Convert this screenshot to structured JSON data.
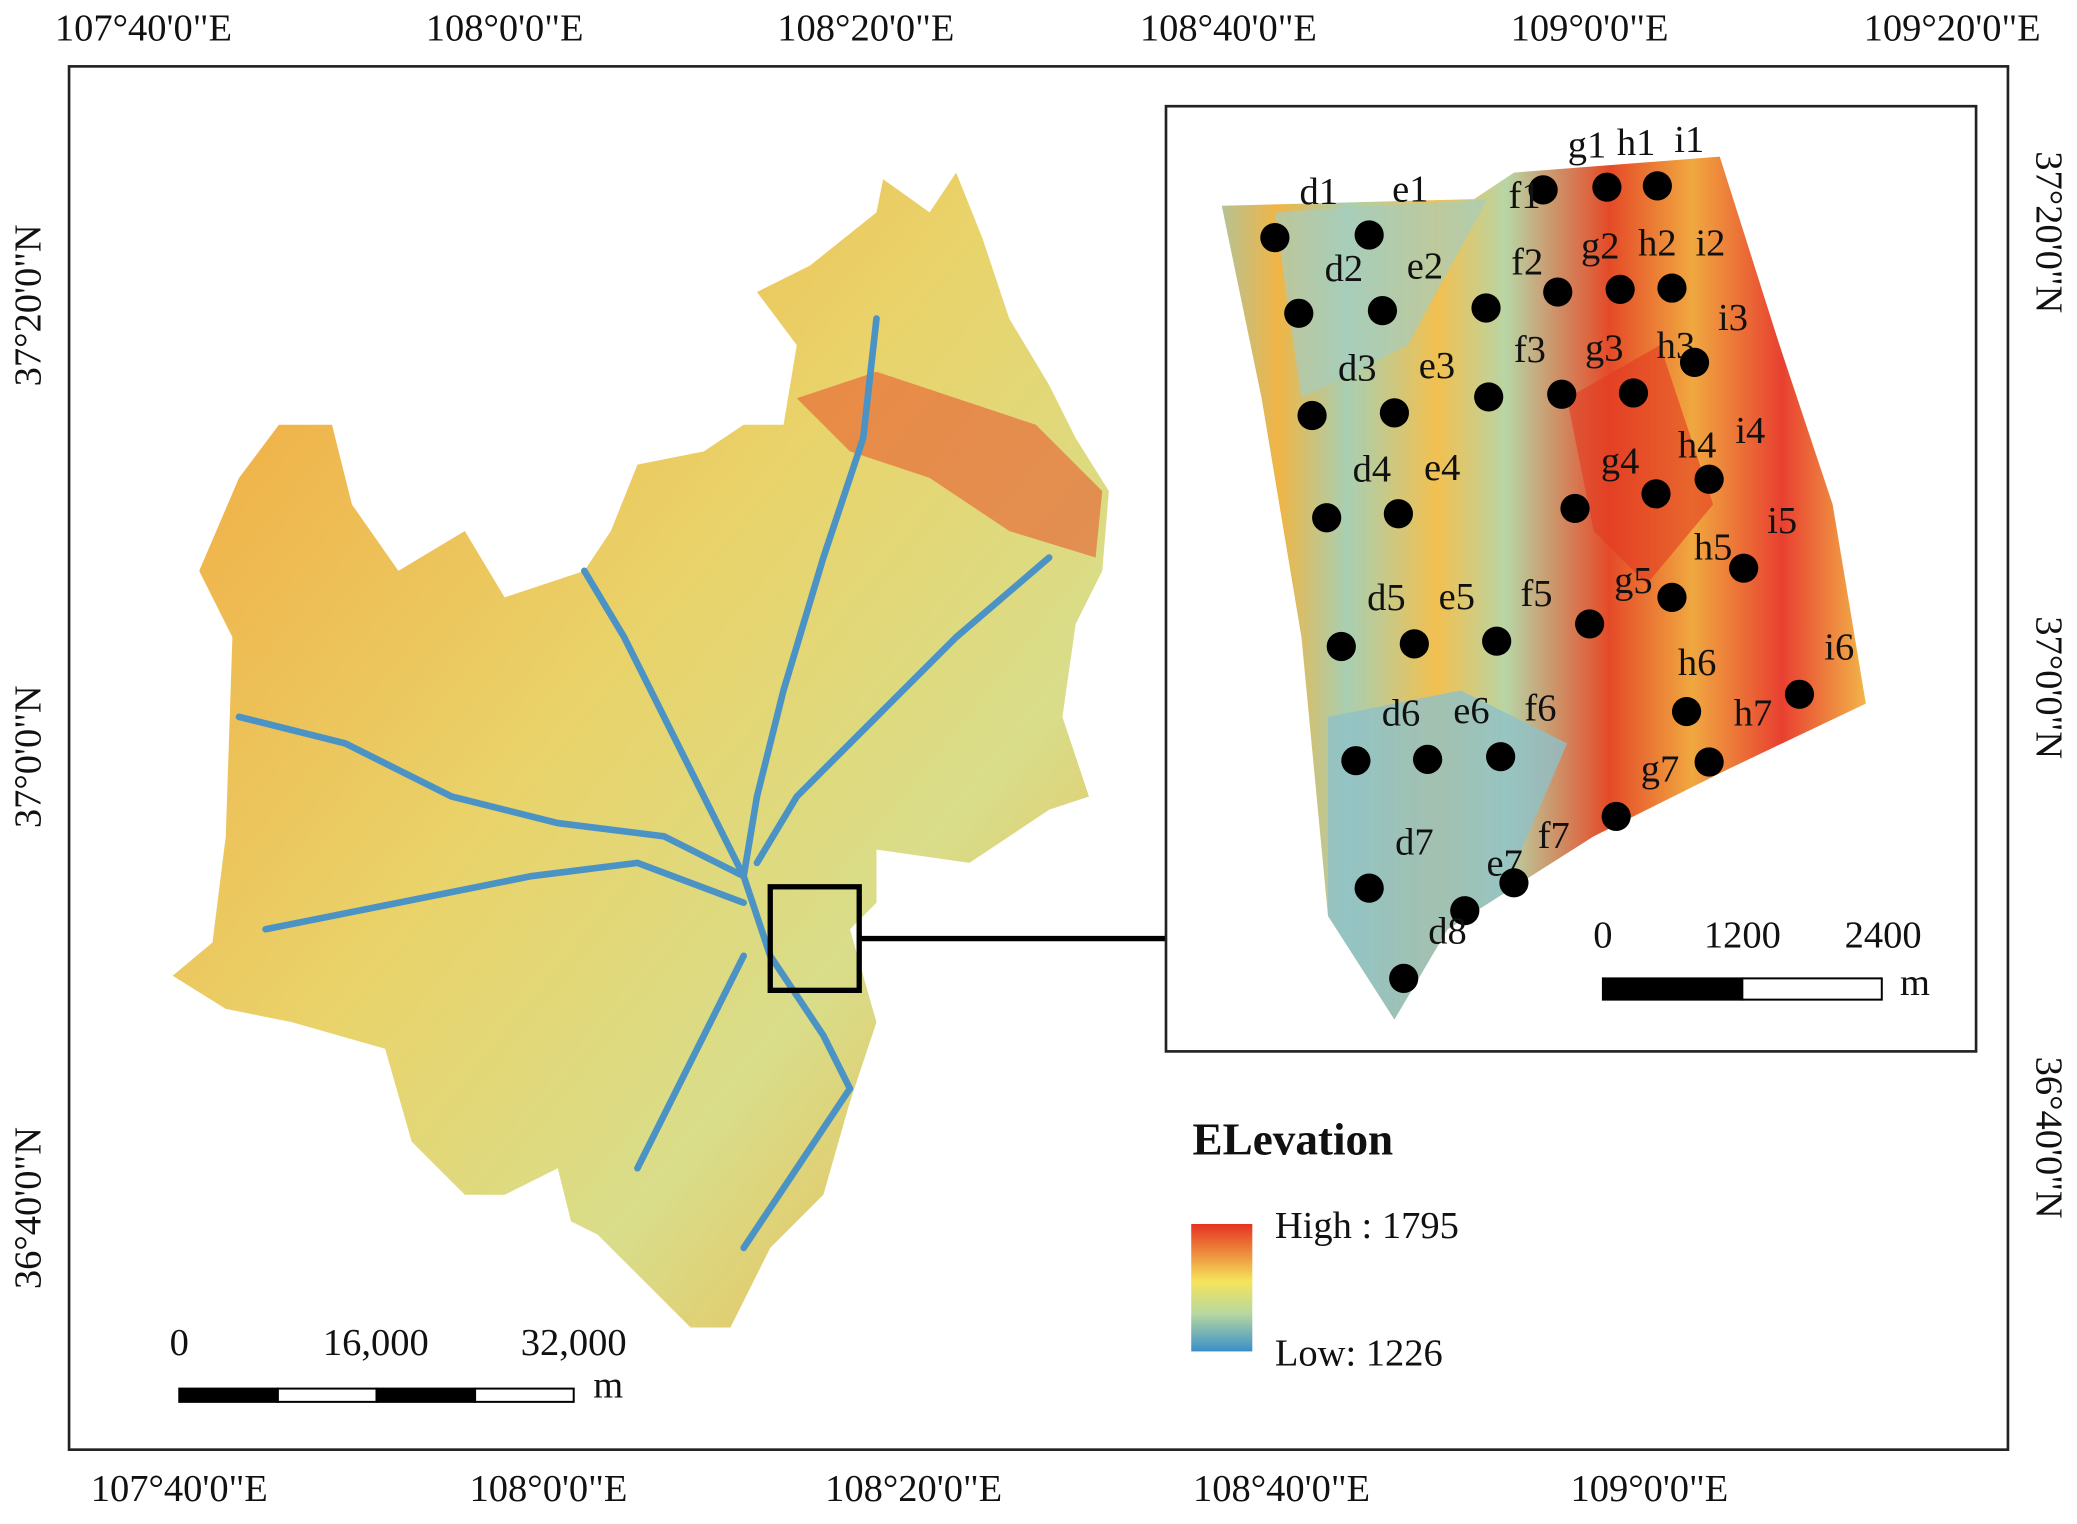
{
  "map": {
    "top_labels": [
      "107°40'0\"E",
      "108°0'0\"E",
      "108°20'0\"E",
      "108°40'0\"E",
      "109°0'0\"E",
      "109°20'0\"E"
    ],
    "bottom_labels": [
      "107°40'0\"E",
      "108°0'0\"E",
      "108°20'0\"E",
      "108°40'0\"E",
      "109°0'0\"E"
    ],
    "left_labels": [
      "37°20'0\"N",
      "37°0'0\"N",
      "36°40'0\"N"
    ],
    "right_labels": [
      "37°20'0\"N",
      "37°0'0\"N",
      "36°40'0\"N"
    ],
    "scale": {
      "ticks": [
        "0",
        "16,000",
        "32,000"
      ],
      "unit": "m"
    },
    "inset": {
      "points": [
        "d1",
        "e1",
        "f1",
        "g1",
        "h1",
        "i1",
        "d2",
        "e2",
        "f2",
        "g2",
        "h2",
        "i2",
        "d3",
        "e3",
        "f3",
        "g3",
        "h3",
        "i3",
        "d4",
        "e4",
        "g4",
        "h4",
        "i4",
        "d5",
        "e5",
        "f5",
        "g5",
        "h5",
        "i5",
        "d6",
        "e6",
        "f6",
        "h6",
        "i6",
        "g7",
        "h7",
        "d7",
        "e7",
        "f7",
        "d8"
      ],
      "scale": {
        "ticks": [
          "0",
          "1200",
          "2400"
        ],
        "unit": "m"
      }
    },
    "legend": {
      "title": "ELevation",
      "high": "High : 1795",
      "low": "Low: 1226"
    }
  }
}
